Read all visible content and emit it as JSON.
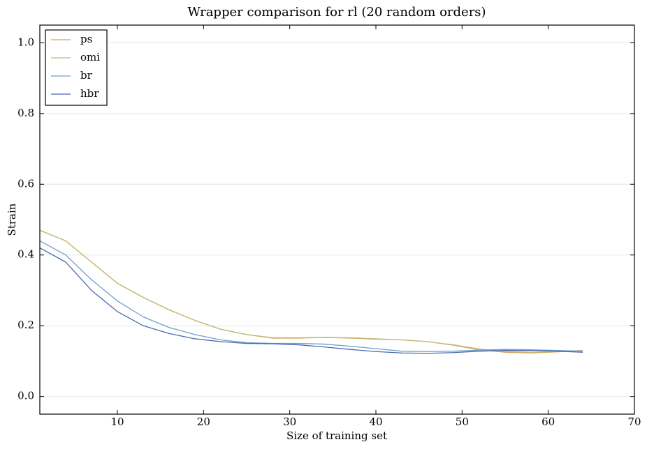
{
  "chart_data": {
    "type": "line",
    "title": "Wrapper comparison for rl (20 random orders)",
    "x_label": "Size of training set",
    "y_label": "Strain",
    "x": [
      1,
      4,
      7,
      10,
      13,
      16,
      19,
      22,
      25,
      28,
      31,
      34,
      37,
      40,
      43,
      46,
      49,
      52,
      55,
      58,
      61,
      64
    ],
    "series": [
      {
        "name": "ps",
        "color": "#dd9e58",
        "values": [
          0.47,
          0.44,
          0.38,
          0.32,
          0.28,
          0.245,
          0.215,
          0.19,
          0.175,
          0.165,
          0.165,
          0.167,
          0.165,
          0.162,
          0.16,
          0.155,
          0.145,
          0.132,
          0.125,
          0.123,
          0.126,
          0.13
        ]
      },
      {
        "name": "omi",
        "color": "#bfbb74",
        "values": [
          0.47,
          0.44,
          0.38,
          0.32,
          0.28,
          0.245,
          0.215,
          0.19,
          0.175,
          0.166,
          0.166,
          0.167,
          0.166,
          0.163,
          0.16,
          0.155,
          0.146,
          0.134,
          0.127,
          0.125,
          0.127,
          0.13
        ]
      },
      {
        "name": "br",
        "color": "#6ca0cc",
        "values": [
          0.44,
          0.4,
          0.33,
          0.27,
          0.225,
          0.195,
          0.175,
          0.16,
          0.152,
          0.15,
          0.15,
          0.148,
          0.142,
          0.135,
          0.128,
          0.127,
          0.128,
          0.131,
          0.133,
          0.132,
          0.13,
          0.128
        ]
      },
      {
        "name": "hbr",
        "color": "#4a68b4",
        "values": [
          0.42,
          0.38,
          0.3,
          0.24,
          0.2,
          0.178,
          0.163,
          0.155,
          0.15,
          0.149,
          0.146,
          0.14,
          0.133,
          0.127,
          0.123,
          0.122,
          0.124,
          0.128,
          0.13,
          0.13,
          0.128,
          0.125
        ]
      }
    ],
    "xlim": [
      1,
      70
    ],
    "xticks": [
      10,
      20,
      30,
      40,
      50,
      60,
      70
    ],
    "ylim": [
      -0.05,
      1.05
    ],
    "yticks": [
      {
        "value": 0,
        "label": "0.0"
      },
      {
        "value": 0.2,
        "label": "0.2"
      },
      {
        "value": 0.4,
        "label": "0.4"
      },
      {
        "value": 0.6,
        "label": "0.6"
      },
      {
        "value": 0.8,
        "label": "0.8"
      },
      {
        "value": 1,
        "label": "1.0"
      }
    ],
    "grid": true,
    "legend": "upper left"
  }
}
